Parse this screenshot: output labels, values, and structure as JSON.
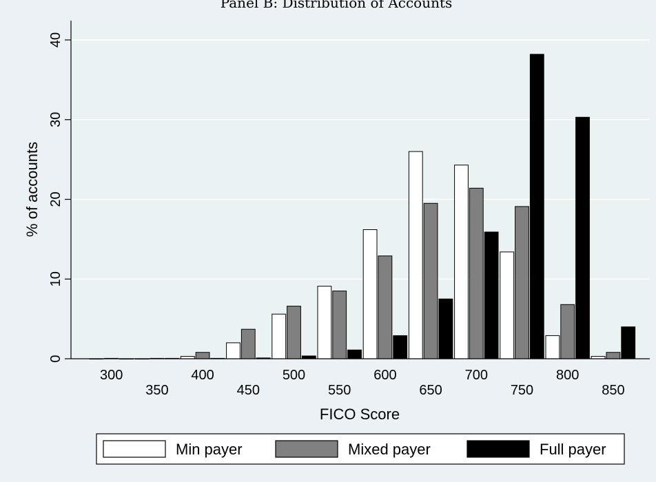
{
  "chart_data": {
    "type": "bar",
    "title": "Panel B: Distribution of Accounts",
    "xlabel": "FICO Score",
    "ylabel": "% of accounts",
    "categories": [
      "300",
      "350",
      "400",
      "450",
      "500",
      "550",
      "600",
      "650",
      "700",
      "750",
      "800",
      "850"
    ],
    "series": [
      {
        "name": "Min payer",
        "color": "#ffffff",
        "values": [
          0,
          0,
          0.3,
          2.0,
          5.6,
          9.1,
          16.2,
          26.0,
          24.3,
          13.4,
          2.9,
          0.3
        ]
      },
      {
        "name": "Mixed payer",
        "color": "#808080",
        "values": [
          0.05,
          0.05,
          0.8,
          3.7,
          6.6,
          8.5,
          12.9,
          19.5,
          21.4,
          19.1,
          6.8,
          0.8
        ]
      },
      {
        "name": "Full payer",
        "color": "#000000",
        "values": [
          0,
          0.05,
          0.05,
          0.1,
          0.35,
          1.1,
          2.9,
          7.5,
          15.9,
          38.2,
          30.3,
          4.0
        ]
      }
    ],
    "yticks": [
      0,
      10,
      20,
      30,
      40
    ],
    "ylim": [
      0,
      42
    ],
    "grid": true,
    "legend_position": "bottom"
  }
}
